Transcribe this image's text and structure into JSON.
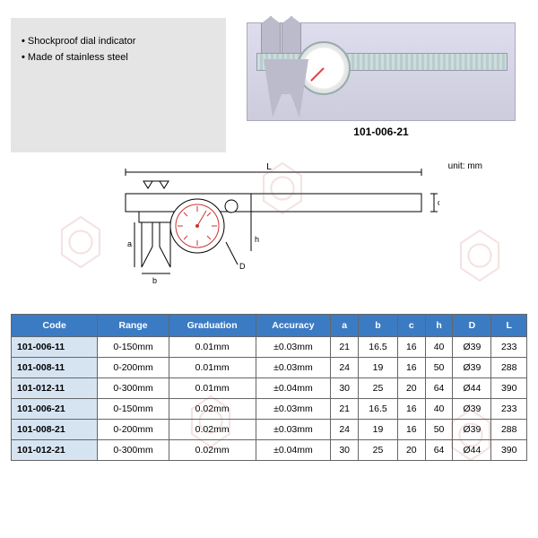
{
  "features": {
    "items": [
      "Shockproof dial indicator",
      "Made of stainless steel"
    ]
  },
  "productCode": "101-006-21",
  "unitLabel": "unit: mm",
  "diagram": {
    "labels": {
      "L": "L",
      "a": "a",
      "b": "b",
      "c": "c",
      "D": "D",
      "h": "h"
    },
    "stroke": "#000",
    "dialAccent": "#c33"
  },
  "table": {
    "columns": [
      "Code",
      "Range",
      "Graduation",
      "Accuracy",
      "a",
      "b",
      "c",
      "h",
      "D",
      "L"
    ],
    "rows": [
      [
        "101-006-11",
        "0-150mm",
        "0.01mm",
        "±0.03mm",
        "21",
        "16.5",
        "16",
        "40",
        "Ø39",
        "233"
      ],
      [
        "101-008-11",
        "0-200mm",
        "0.01mm",
        "±0.03mm",
        "24",
        "19",
        "16",
        "50",
        "Ø39",
        "288"
      ],
      [
        "101-012-11",
        "0-300mm",
        "0.01mm",
        "±0.04mm",
        "30",
        "25",
        "20",
        "64",
        "Ø44",
        "390"
      ],
      [
        "101-006-21",
        "0-150mm",
        "0.02mm",
        "±0.03mm",
        "21",
        "16.5",
        "16",
        "40",
        "Ø39",
        "233"
      ],
      [
        "101-008-21",
        "0-200mm",
        "0.02mm",
        "±0.03mm",
        "24",
        "19",
        "16",
        "50",
        "Ø39",
        "288"
      ],
      [
        "101-012-21",
        "0-300mm",
        "0.02mm",
        "±0.04mm",
        "30",
        "25",
        "20",
        "64",
        "Ø44",
        "390"
      ]
    ],
    "headerBg": "#3b7bc4",
    "codeCellBg": "#d6e4f2",
    "borderColor": "#666"
  }
}
